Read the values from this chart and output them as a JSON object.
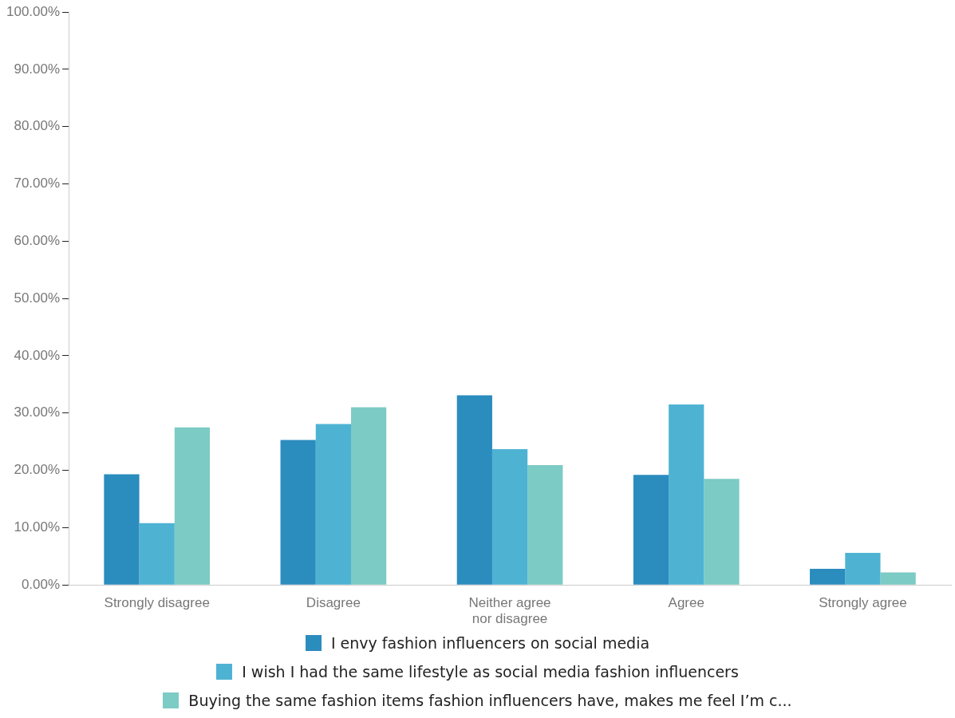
{
  "chart_data": {
    "type": "bar",
    "categories": [
      "Strongly disagree",
      "Disagree",
      "Neither agree nor disagree",
      "Agree",
      "Strongly agree"
    ],
    "series": [
      {
        "name": "I envy fashion influencers on social media",
        "color": "#2b8cbe",
        "values": [
          19.3,
          25.3,
          33.1,
          19.2,
          2.8
        ]
      },
      {
        "name": "I wish I had the same lifestyle as social media fashion influencers",
        "color": "#4eb3d3",
        "values": [
          10.8,
          28.1,
          23.7,
          31.5,
          5.6
        ]
      },
      {
        "name": "Buying the same fashion items fashion influencers have, makes me feel I’m c...",
        "color": "#7ccbc4",
        "values": [
          27.5,
          31.0,
          20.9,
          18.5,
          2.2
        ]
      }
    ],
    "ylim": [
      0,
      100
    ],
    "yticks": [
      {
        "value": 0,
        "label": "0.00%"
      },
      {
        "value": 10,
        "label": "10.00%"
      },
      {
        "value": 20,
        "label": "20.00%"
      },
      {
        "value": 30,
        "label": "30.00%"
      },
      {
        "value": 40,
        "label": "40.00%"
      },
      {
        "value": 50,
        "label": "50.00%"
      },
      {
        "value": 60,
        "label": "60.00%"
      },
      {
        "value": 70,
        "label": "70.00%"
      },
      {
        "value": 80,
        "label": "80.00%"
      },
      {
        "value": 90,
        "label": "90.00%"
      },
      {
        "value": 100,
        "label": "100.00%"
      }
    ],
    "grid": false,
    "legend": "bottom"
  }
}
